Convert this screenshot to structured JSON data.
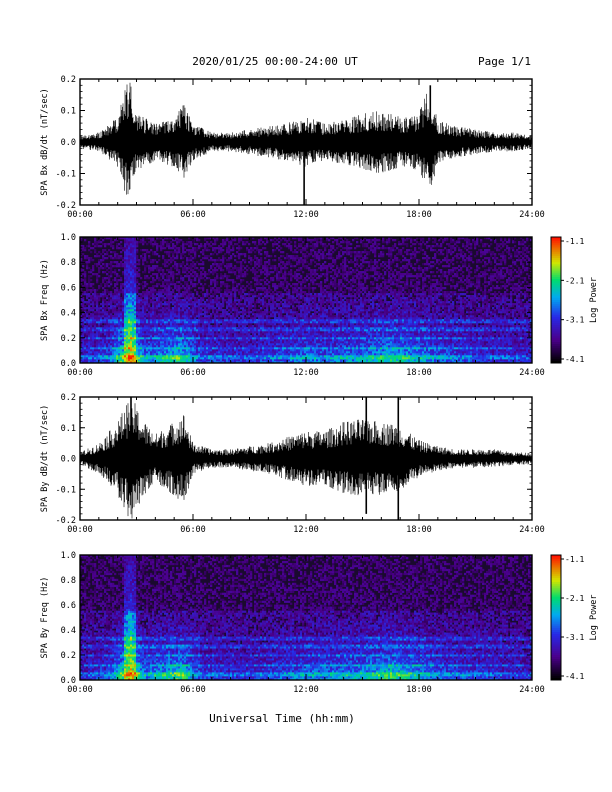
{
  "header": {
    "title": "2020/01/25  00:00-24:00 UT",
    "page": "Page 1/1"
  },
  "x_axis": {
    "label": "Universal Time (hh:mm)",
    "ticks": [
      "00:00",
      "06:00",
      "12:00",
      "18:00",
      "24:00"
    ],
    "range": [
      0,
      24
    ]
  },
  "colorbar": {
    "label": "Log Power",
    "ticks": [
      "-1.1",
      "-2.1",
      "-3.1",
      "-4.1"
    ],
    "range": [
      -4.1,
      -1.1
    ]
  },
  "chart_data": [
    {
      "type": "line",
      "ylabel": "SPA Bx dB/dt (nT/sec)",
      "xlim": [
        0,
        24
      ],
      "ylim": [
        -0.2,
        0.2
      ],
      "yticks": [
        "0.2",
        "0.1",
        "0.0",
        "-0.1",
        "-0.2"
      ],
      "envelope": {
        "x": [
          0,
          1,
          2,
          2.6,
          3,
          4,
          5,
          5.5,
          6,
          7,
          8,
          9,
          10,
          11,
          12,
          13,
          14,
          15,
          16,
          17,
          18,
          18.5,
          19,
          20,
          21,
          22,
          23,
          24
        ],
        "amplitude": [
          0.02,
          0.03,
          0.08,
          0.21,
          0.09,
          0.06,
          0.08,
          0.12,
          0.06,
          0.03,
          0.03,
          0.04,
          0.05,
          0.06,
          0.08,
          0.06,
          0.07,
          0.09,
          0.1,
          0.08,
          0.09,
          0.18,
          0.07,
          0.05,
          0.04,
          0.03,
          0.03,
          0.02
        ]
      },
      "spikes": [
        {
          "x": 11.9,
          "min": -0.2,
          "max": 0.06
        },
        {
          "x": 18.6,
          "min": -0.05,
          "max": 0.18
        }
      ]
    },
    {
      "type": "heatmap",
      "ylabel": "SPA Bx Freq (Hz)",
      "xlim": [
        0,
        24
      ],
      "ylim": [
        0,
        1.0
      ],
      "yticks": [
        "1.0",
        "0.8",
        "0.6",
        "0.4",
        "0.2",
        "0.0"
      ],
      "activity": {
        "x": [
          0,
          1.5,
          2.7,
          3.5,
          5.4,
          6.5,
          9,
          12,
          13,
          15,
          16.5,
          18,
          20,
          22,
          24
        ],
        "level": [
          0.2,
          0.35,
          1.0,
          0.45,
          0.7,
          0.3,
          0.25,
          0.45,
          0.4,
          0.5,
          0.65,
          0.5,
          0.35,
          0.25,
          0.2
        ]
      }
    },
    {
      "type": "line",
      "ylabel": "SPA By dB/dt (nT/sec)",
      "xlim": [
        0,
        24
      ],
      "ylim": [
        -0.2,
        0.2
      ],
      "yticks": [
        "0.2",
        "0.1",
        "0.0",
        "-0.1",
        "-0.2"
      ],
      "envelope": {
        "x": [
          0,
          1,
          2,
          2.7,
          3.3,
          4,
          5,
          5.5,
          6,
          7,
          8,
          9,
          10,
          11,
          12,
          13,
          14,
          15,
          16,
          16.9,
          18,
          19,
          20,
          21,
          22,
          23,
          24
        ],
        "amplitude": [
          0.02,
          0.05,
          0.12,
          0.21,
          0.13,
          0.08,
          0.12,
          0.15,
          0.05,
          0.03,
          0.03,
          0.04,
          0.05,
          0.07,
          0.09,
          0.09,
          0.12,
          0.13,
          0.12,
          0.11,
          0.06,
          0.04,
          0.03,
          0.03,
          0.03,
          0.02,
          0.02
        ]
      },
      "spikes": [
        {
          "x": 15.2,
          "min": -0.18,
          "max": 0.2
        },
        {
          "x": 16.9,
          "min": -0.2,
          "max": 0.2
        }
      ]
    },
    {
      "type": "heatmap",
      "ylabel": "SPA By Freq (Hz)",
      "xlim": [
        0,
        24
      ],
      "ylim": [
        0,
        1.0
      ],
      "yticks": [
        "1.0",
        "0.8",
        "0.6",
        "0.4",
        "0.2",
        "0.0"
      ],
      "activity": {
        "x": [
          0,
          1.5,
          2.7,
          3.5,
          5.4,
          6.5,
          9,
          12,
          13,
          15,
          16.5,
          17.5,
          19,
          21,
          24
        ],
        "level": [
          0.2,
          0.35,
          1.0,
          0.45,
          0.75,
          0.3,
          0.25,
          0.45,
          0.45,
          0.55,
          0.7,
          0.6,
          0.4,
          0.3,
          0.2
        ]
      }
    }
  ]
}
